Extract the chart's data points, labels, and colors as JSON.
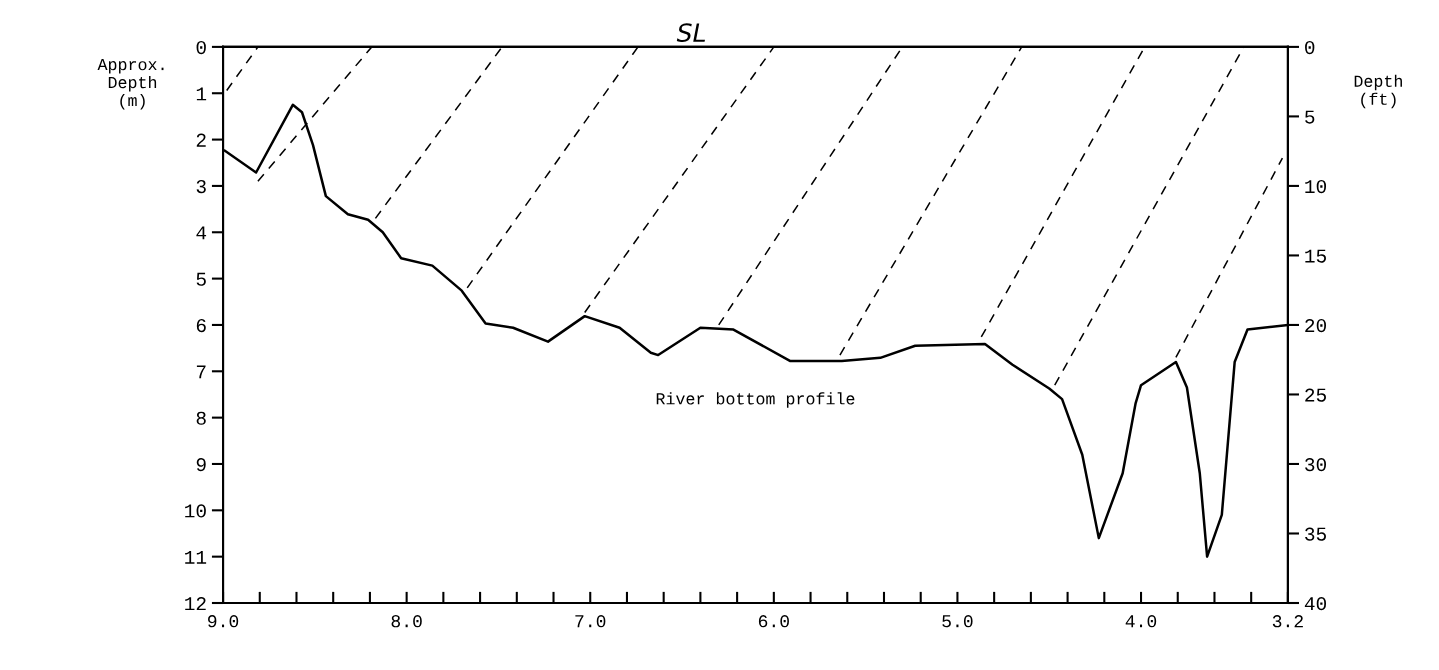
{
  "chart_data": {
    "type": "line",
    "ylabel": "Approx.\nDepth\n(m)",
    "y2label": "Depth\n(ft)",
    "xlim": [
      9.0,
      3.2
    ],
    "ylim": [
      12,
      0
    ],
    "y2lim": [
      40,
      0
    ],
    "xticks": [
      {
        "value": 9.0,
        "label": "9.0"
      },
      {
        "value": 8.8,
        "label": null
      },
      {
        "value": 8.6,
        "label": null
      },
      {
        "value": 8.4,
        "label": null
      },
      {
        "value": 8.2,
        "label": null
      },
      {
        "value": 8.0,
        "label": "8.0"
      },
      {
        "value": 7.8,
        "label": null
      },
      {
        "value": 7.6,
        "label": null
      },
      {
        "value": 7.4,
        "label": null
      },
      {
        "value": 7.2,
        "label": null
      },
      {
        "value": 7.0,
        "label": "7.0"
      },
      {
        "value": 6.8,
        "label": null
      },
      {
        "value": 6.6,
        "label": null
      },
      {
        "value": 6.4,
        "label": null
      },
      {
        "value": 6.2,
        "label": null
      },
      {
        "value": 6.0,
        "label": "6.0"
      },
      {
        "value": 5.8,
        "label": null
      },
      {
        "value": 5.6,
        "label": null
      },
      {
        "value": 5.4,
        "label": null
      },
      {
        "value": 5.2,
        "label": null
      },
      {
        "value": 5.0,
        "label": "5.0"
      },
      {
        "value": 4.8,
        "label": null
      },
      {
        "value": 4.6,
        "label": null
      },
      {
        "value": 4.4,
        "label": null
      },
      {
        "value": 4.2,
        "label": null
      },
      {
        "value": 4.0,
        "label": "4.0"
      },
      {
        "value": 3.8,
        "label": null
      },
      {
        "value": 3.6,
        "label": null
      },
      {
        "value": 3.4,
        "label": null
      },
      {
        "value": 3.2,
        "label": "3.2"
      }
    ],
    "yticks": [
      0,
      1,
      2,
      3,
      4,
      5,
      6,
      7,
      8,
      9,
      10,
      11,
      12
    ],
    "y2ticks": [
      0,
      5,
      10,
      15,
      20,
      25,
      30,
      35,
      40
    ],
    "grid": false,
    "legend": false,
    "marker": "none",
    "annotations": [
      "SL"
    ],
    "series": [
      {
        "name": "River bottom profile",
        "color": "#000000",
        "line_style": "solid",
        "x": [
          8.99,
          8.82,
          8.62,
          8.57,
          8.51,
          8.44,
          8.32,
          8.21,
          8.13,
          8.03,
          7.86,
          7.7,
          7.57,
          7.42,
          7.23,
          7.03,
          6.84,
          6.67,
          6.63,
          6.4,
          6.22,
          5.91,
          5.63,
          5.42,
          5.23,
          4.85,
          4.7,
          4.5,
          4.43,
          4.32,
          4.23,
          4.1,
          4.03,
          4.0,
          3.81,
          3.75,
          3.68,
          3.64,
          3.56,
          3.49,
          3.42,
          3.2
        ],
        "values": [
          2.24,
          2.71,
          1.25,
          1.41,
          2.12,
          3.22,
          3.61,
          3.73,
          4.0,
          4.56,
          4.72,
          5.26,
          5.97,
          6.06,
          6.36,
          5.81,
          6.06,
          6.6,
          6.65,
          6.06,
          6.1,
          6.78,
          6.78,
          6.71,
          6.45,
          6.41,
          6.86,
          7.37,
          7.6,
          8.8,
          10.6,
          9.2,
          7.7,
          7.3,
          6.8,
          7.35,
          9.2,
          11.0,
          10.1,
          6.8,
          6.1,
          6.0
        ]
      },
      {
        "color": "#000000",
        "line_style": "dashed",
        "x": [
          8.98,
          8.81
        ],
        "values": [
          0.94,
          0
        ]
      },
      {
        "color": "#000000",
        "line_style": "dashed",
        "x": [
          8.81,
          8.19
        ],
        "values": [
          2.9,
          0
        ]
      },
      {
        "color": "#000000",
        "line_style": "dashed",
        "x": [
          8.17,
          7.48
        ],
        "values": [
          3.7,
          0
        ]
      },
      {
        "color": "#000000",
        "line_style": "dashed",
        "x": [
          7.67,
          6.74
        ],
        "values": [
          5.2,
          0
        ]
      },
      {
        "color": "#000000",
        "line_style": "dashed",
        "x": [
          7.03,
          6.0
        ],
        "values": [
          5.73,
          0
        ]
      },
      {
        "color": "#000000",
        "line_style": "dashed",
        "x": [
          6.3,
          5.3
        ],
        "values": [
          6.0,
          0
        ]
      },
      {
        "color": "#000000",
        "line_style": "dashed",
        "x": [
          5.64,
          4.65
        ],
        "values": [
          6.65,
          0
        ]
      },
      {
        "color": "#000000",
        "line_style": "dashed",
        "x": [
          4.87,
          3.98
        ],
        "values": [
          6.26,
          0
        ]
      },
      {
        "color": "#000000",
        "line_style": "dashed",
        "x": [
          4.47,
          3.44
        ],
        "values": [
          7.3,
          0
        ]
      },
      {
        "color": "#000000",
        "line_style": "dashed",
        "x": [
          3.81,
          3.23
        ],
        "values": [
          6.7,
          2.4
        ]
      }
    ]
  }
}
